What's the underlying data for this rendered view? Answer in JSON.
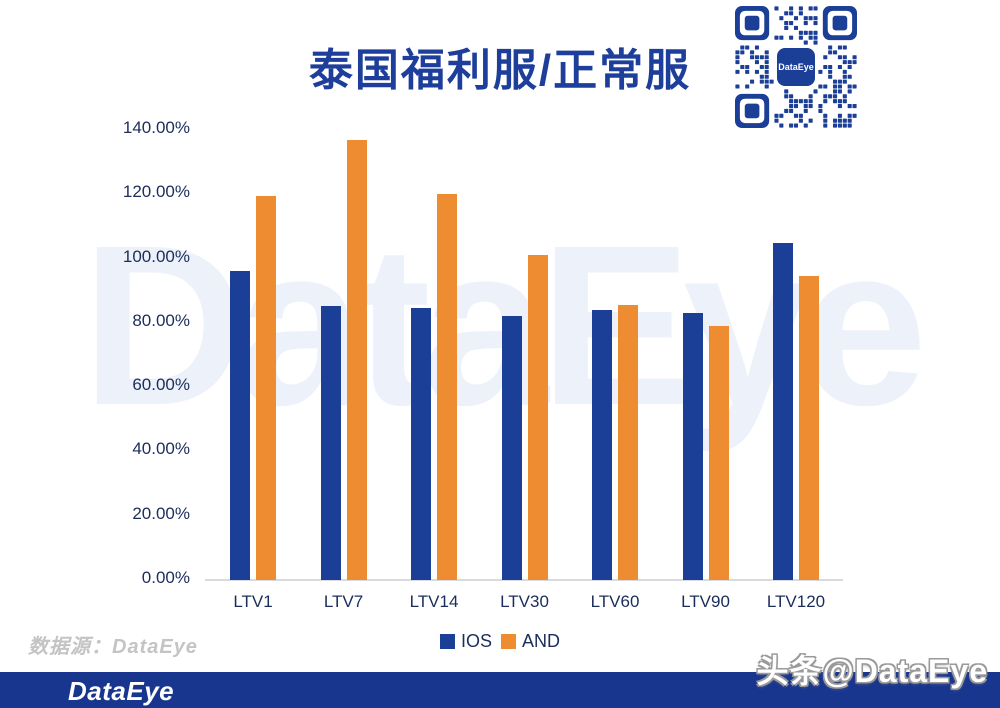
{
  "title": "泰国福利服/正常服",
  "watermark": "DataEye",
  "qr": {
    "center_label": "DataEye"
  },
  "chart_data": {
    "type": "bar",
    "title": "泰国福利服/正常服",
    "categories": [
      "LTV1",
      "LTV7",
      "LTV14",
      "LTV30",
      "LTV60",
      "LTV90",
      "LTV120"
    ],
    "series": [
      {
        "name": "IOS",
        "color": "#1b3e96",
        "values": [
          96,
          85.3,
          84.7,
          82,
          84,
          83,
          105
        ]
      },
      {
        "name": "AND",
        "color": "#ee8c32",
        "values": [
          119.5,
          137,
          120,
          101,
          85.5,
          79,
          94.5
        ]
      }
    ],
    "xlabel": "",
    "ylabel": "",
    "ylim": [
      0,
      140
    ],
    "y_ticks": [
      "0.00%",
      "20.00%",
      "40.00%",
      "60.00%",
      "80.00%",
      "100.00%",
      "120.00%",
      "140.00%"
    ],
    "grid": false,
    "legend_position": "bottom"
  },
  "legend": [
    {
      "label": "IOS",
      "color": "#1b3e96"
    },
    {
      "label": "AND",
      "color": "#ee8c32"
    }
  ],
  "source_note": "数据源：DataEye",
  "footer": {
    "logo": "DataEye",
    "handle": "头条@DataEye"
  },
  "colors": {
    "bar_blue": "#1b3e96",
    "bar_orange": "#ee8c32",
    "title_text": "#1d3e9b",
    "axis_text": "#1b2d5b",
    "footer_bar": "#19368f",
    "watermark": "#edf1f9",
    "source_text": "#c4c4c4"
  }
}
